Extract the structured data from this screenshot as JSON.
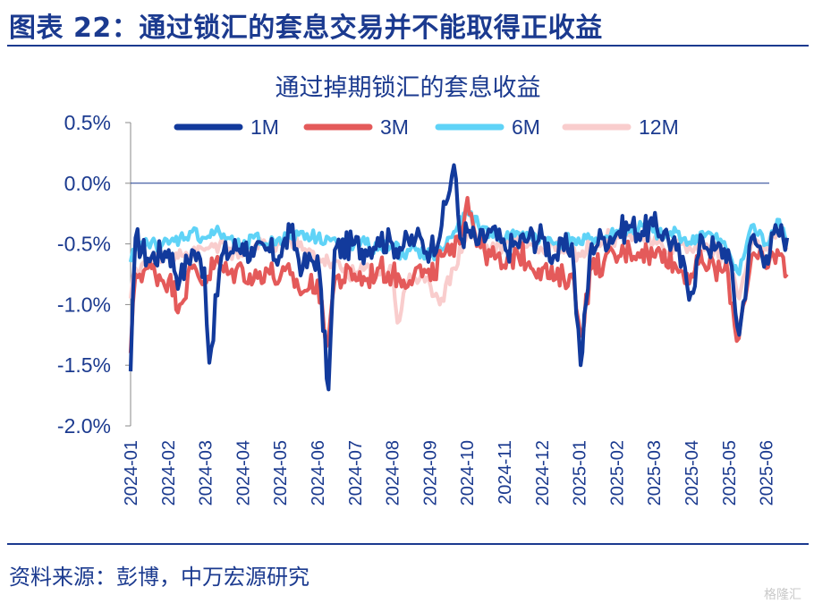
{
  "figure_title": "图表 22：通过锁汇的套息交易并不能取得正收益",
  "source": "资料来源：彭博，中万宏源研究",
  "watermark": "格隆汇",
  "chart_data": {
    "type": "line",
    "title": "通过掉期锁汇的套息收益",
    "xlabel": "",
    "ylabel": "",
    "ylim": [
      -2.0,
      0.5
    ],
    "yticks": [
      0.5,
      0.0,
      -0.5,
      -1.0,
      -1.5,
      -2.0
    ],
    "ytick_labels": [
      "0.5%",
      "0.0%",
      "-0.5%",
      "-1.0%",
      "-1.5%",
      "-2.0%"
    ],
    "xticks": [
      "2024-01",
      "2024-02",
      "2024-03",
      "2024-04",
      "2024-05",
      "2024-06",
      "2024-07",
      "2024-08",
      "2024-09",
      "2024-10",
      "2024-11",
      "2024-12",
      "2025-01",
      "2025-02",
      "2025-03",
      "2025-04",
      "2025-05",
      "2025-06"
    ],
    "legend_position": "top",
    "grid": false,
    "series": [
      {
        "name": "1M",
        "color": "#123a9c",
        "points": [
          [
            "2024-01",
            -1.55
          ],
          [
            "2024-01-05",
            -0.45
          ],
          [
            "2024-01-15",
            -0.62
          ],
          [
            "2024-02",
            -0.55
          ],
          [
            "2024-02-10",
            -0.8
          ],
          [
            "2024-02-20",
            -0.55
          ],
          [
            "2024-03",
            -0.7
          ],
          [
            "2024-03-05",
            -1.48
          ],
          [
            "2024-03-15",
            -0.6
          ],
          [
            "2024-04",
            -0.5
          ],
          [
            "2024-04-10",
            -0.6
          ],
          [
            "2024-04-20",
            -0.55
          ],
          [
            "2024-05",
            -0.6
          ],
          [
            "2024-05-10",
            -0.4
          ],
          [
            "2024-05-20",
            -0.7
          ],
          [
            "2024-06",
            -0.6
          ],
          [
            "2024-06-10",
            -1.7
          ],
          [
            "2024-06-15",
            -0.55
          ],
          [
            "2024-07",
            -0.5
          ],
          [
            "2024-07-10",
            -0.55
          ],
          [
            "2024-07-20",
            -0.45
          ],
          [
            "2024-08",
            -0.5
          ],
          [
            "2024-08-10",
            -0.52
          ],
          [
            "2024-08-20",
            -0.45
          ],
          [
            "2024-09",
            -0.55
          ],
          [
            "2024-09-10",
            -0.35
          ],
          [
            "2024-09-20",
            0.15
          ],
          [
            "2024-09-25",
            -0.45
          ],
          [
            "2024-10",
            -0.4
          ],
          [
            "2024-10-10",
            -0.5
          ],
          [
            "2024-10-20",
            -0.4
          ],
          [
            "2024-11",
            -0.55
          ],
          [
            "2024-11-10",
            -0.5
          ],
          [
            "2024-11-20",
            -0.45
          ],
          [
            "2024-12",
            -0.45
          ],
          [
            "2024-12-10",
            -0.6
          ],
          [
            "2024-12-25",
            -0.5
          ],
          [
            "2025-01",
            -1.5
          ],
          [
            "2025-01-10",
            -0.5
          ],
          [
            "2025-01-20",
            -0.45
          ],
          [
            "2025-02",
            -0.4
          ],
          [
            "2025-02-10",
            -0.35
          ],
          [
            "2025-02-20",
            -0.4
          ],
          [
            "2025-03",
            -0.35
          ],
          [
            "2025-03-10",
            -0.4
          ],
          [
            "2025-03-20",
            -0.55
          ],
          [
            "2025-04",
            -0.9
          ],
          [
            "2025-04-10",
            -0.45
          ],
          [
            "2025-04-20",
            -0.55
          ],
          [
            "2025-05",
            -0.55
          ],
          [
            "2025-05-10",
            -1.25
          ],
          [
            "2025-05-20",
            -0.45
          ],
          [
            "2025-06",
            -0.6
          ],
          [
            "2025-06-10",
            -0.4
          ],
          [
            "2025-06-18",
            -0.45
          ]
        ]
      },
      {
        "name": "3M",
        "color": "#e45a5a",
        "points": [
          [
            "2024-01",
            -1.4
          ],
          [
            "2024-01-05",
            -0.75
          ],
          [
            "2024-01-15",
            -0.7
          ],
          [
            "2024-02",
            -0.8
          ],
          [
            "2024-02-10",
            -1.0
          ],
          [
            "2024-02-20",
            -0.7
          ],
          [
            "2024-03",
            -0.8
          ],
          [
            "2024-03-10",
            -0.65
          ],
          [
            "2024-03-20",
            -0.75
          ],
          [
            "2024-04",
            -0.7
          ],
          [
            "2024-04-10",
            -0.8
          ],
          [
            "2024-04-20",
            -0.7
          ],
          [
            "2024-05",
            -0.8
          ],
          [
            "2024-05-10",
            -0.75
          ],
          [
            "2024-05-20",
            -0.9
          ],
          [
            "2024-06",
            -0.8
          ],
          [
            "2024-06-08",
            -1.35
          ],
          [
            "2024-06-15",
            -0.8
          ],
          [
            "2024-07",
            -0.75
          ],
          [
            "2024-07-10",
            -0.8
          ],
          [
            "2024-07-20",
            -0.7
          ],
          [
            "2024-08",
            -0.75
          ],
          [
            "2024-08-10",
            -0.8
          ],
          [
            "2024-08-20",
            -0.7
          ],
          [
            "2024-09",
            -0.8
          ],
          [
            "2024-09-10",
            -0.6
          ],
          [
            "2024-09-20",
            -0.6
          ],
          [
            "2024-10",
            -0.12
          ],
          [
            "2024-10-10",
            -0.5
          ],
          [
            "2024-10-20",
            -0.6
          ],
          [
            "2024-11",
            -0.7
          ],
          [
            "2024-11-10",
            -0.55
          ],
          [
            "2024-11-20",
            -0.65
          ],
          [
            "2024-12",
            -0.7
          ],
          [
            "2024-12-10",
            -0.8
          ],
          [
            "2024-12-25",
            -0.75
          ],
          [
            "2025-01",
            -1.25
          ],
          [
            "2025-01-10",
            -0.7
          ],
          [
            "2025-01-20",
            -0.65
          ],
          [
            "2025-02",
            -0.6
          ],
          [
            "2025-02-10",
            -0.55
          ],
          [
            "2025-02-20",
            -0.55
          ],
          [
            "2025-03",
            -0.6
          ],
          [
            "2025-03-10",
            -0.55
          ],
          [
            "2025-03-20",
            -0.7
          ],
          [
            "2025-04",
            -0.75
          ],
          [
            "2025-04-10",
            -0.65
          ],
          [
            "2025-04-20",
            -0.7
          ],
          [
            "2025-05",
            -0.75
          ],
          [
            "2025-05-08",
            -1.3
          ],
          [
            "2025-05-20",
            -0.6
          ],
          [
            "2025-06",
            -0.7
          ],
          [
            "2025-06-10",
            -0.55
          ],
          [
            "2025-06-18",
            -0.75
          ]
        ]
      },
      {
        "name": "6M",
        "color": "#5fd3f7",
        "points": [
          [
            "2024-01",
            -0.65
          ],
          [
            "2024-01-05",
            -0.55
          ],
          [
            "2024-01-15",
            -0.5
          ],
          [
            "2024-02",
            -0.5
          ],
          [
            "2024-02-10",
            -0.45
          ],
          [
            "2024-02-20",
            -0.4
          ],
          [
            "2024-03",
            -0.45
          ],
          [
            "2024-03-10",
            -0.4
          ],
          [
            "2024-03-20",
            -0.45
          ],
          [
            "2024-04",
            -0.55
          ],
          [
            "2024-04-10",
            -0.45
          ],
          [
            "2024-04-20",
            -0.5
          ],
          [
            "2024-05",
            -0.45
          ],
          [
            "2024-05-10",
            -0.45
          ],
          [
            "2024-05-20",
            -0.4
          ],
          [
            "2024-06",
            -0.45
          ],
          [
            "2024-06-10",
            -0.45
          ],
          [
            "2024-06-20",
            -0.5
          ],
          [
            "2024-07",
            -0.5
          ],
          [
            "2024-07-10",
            -0.5
          ],
          [
            "2024-07-20",
            -0.55
          ],
          [
            "2024-08",
            -0.5
          ],
          [
            "2024-08-10",
            -0.6
          ],
          [
            "2024-08-20",
            -0.55
          ],
          [
            "2024-09",
            -0.6
          ],
          [
            "2024-09-10",
            -0.55
          ],
          [
            "2024-09-20",
            -0.4
          ],
          [
            "2024-10",
            -0.25
          ],
          [
            "2024-10-10",
            -0.35
          ],
          [
            "2024-10-20",
            -0.4
          ],
          [
            "2024-11",
            -0.45
          ],
          [
            "2024-11-10",
            -0.4
          ],
          [
            "2024-11-20",
            -0.45
          ],
          [
            "2024-12",
            -0.45
          ],
          [
            "2024-12-10",
            -0.5
          ],
          [
            "2024-12-25",
            -0.45
          ],
          [
            "2025-01",
            -0.5
          ],
          [
            "2025-01-10",
            -0.45
          ],
          [
            "2025-01-20",
            -0.45
          ],
          [
            "2025-02",
            -0.4
          ],
          [
            "2025-02-10",
            -0.4
          ],
          [
            "2025-02-20",
            -0.35
          ],
          [
            "2025-03",
            -0.4
          ],
          [
            "2025-03-10",
            -0.45
          ],
          [
            "2025-03-20",
            -0.4
          ],
          [
            "2025-04",
            -0.5
          ],
          [
            "2025-04-10",
            -0.4
          ],
          [
            "2025-04-20",
            -0.45
          ],
          [
            "2025-05",
            -0.55
          ],
          [
            "2025-05-10",
            -0.75
          ],
          [
            "2025-05-20",
            -0.35
          ],
          [
            "2025-06",
            -0.5
          ],
          [
            "2025-06-10",
            -0.3
          ],
          [
            "2025-06-18",
            -0.45
          ]
        ]
      },
      {
        "name": "12M",
        "color": "#f9cdcd",
        "points": [
          [
            "2024-01",
            -0.95
          ],
          [
            "2024-01-05",
            -0.7
          ],
          [
            "2024-01-15",
            -0.65
          ],
          [
            "2024-02",
            -0.6
          ],
          [
            "2024-02-10",
            -0.55
          ],
          [
            "2024-02-20",
            -0.6
          ],
          [
            "2024-03",
            -0.55
          ],
          [
            "2024-03-10",
            -0.5
          ],
          [
            "2024-03-20",
            -0.55
          ],
          [
            "2024-04",
            -0.6
          ],
          [
            "2024-04-10",
            -0.55
          ],
          [
            "2024-04-20",
            -0.5
          ],
          [
            "2024-05",
            -0.5
          ],
          [
            "2024-05-10",
            -0.45
          ],
          [
            "2024-05-20",
            -0.55
          ],
          [
            "2024-06",
            -0.6
          ],
          [
            "2024-06-10",
            -0.65
          ],
          [
            "2024-06-20",
            -0.7
          ],
          [
            "2024-07",
            -0.75
          ],
          [
            "2024-07-10",
            -0.7
          ],
          [
            "2024-07-20",
            -0.75
          ],
          [
            "2024-08",
            -0.7
          ],
          [
            "2024-08-05",
            -1.15
          ],
          [
            "2024-08-15",
            -0.75
          ],
          [
            "2024-09",
            -0.85
          ],
          [
            "2024-09-10",
            -0.95
          ],
          [
            "2024-09-20",
            -0.7
          ],
          [
            "2024-10",
            -0.4
          ],
          [
            "2024-10-10",
            -0.5
          ],
          [
            "2024-10-20",
            -0.55
          ],
          [
            "2024-11",
            -0.5
          ],
          [
            "2024-11-10",
            -0.45
          ],
          [
            "2024-11-20",
            -0.5
          ],
          [
            "2024-12",
            -0.55
          ],
          [
            "2024-12-10",
            -0.5
          ],
          [
            "2024-12-25",
            -0.55
          ],
          [
            "2025-01",
            -0.6
          ],
          [
            "2025-01-10",
            -0.5
          ],
          [
            "2025-01-20",
            -0.45
          ],
          [
            "2025-02",
            -0.45
          ],
          [
            "2025-02-10",
            -0.4
          ],
          [
            "2025-02-20",
            -0.45
          ],
          [
            "2025-03",
            -0.5
          ],
          [
            "2025-03-10",
            -0.55
          ],
          [
            "2025-03-20",
            -0.5
          ],
          [
            "2025-04",
            -0.55
          ],
          [
            "2025-04-10",
            -0.5
          ],
          [
            "2025-04-20",
            -0.55
          ],
          [
            "2025-05",
            -0.65
          ],
          [
            "2025-05-10",
            -0.95
          ],
          [
            "2025-05-20",
            -0.5
          ],
          [
            "2025-06",
            -0.55
          ],
          [
            "2025-06-10",
            -0.4
          ],
          [
            "2025-06-18",
            -0.55
          ]
        ]
      }
    ]
  }
}
